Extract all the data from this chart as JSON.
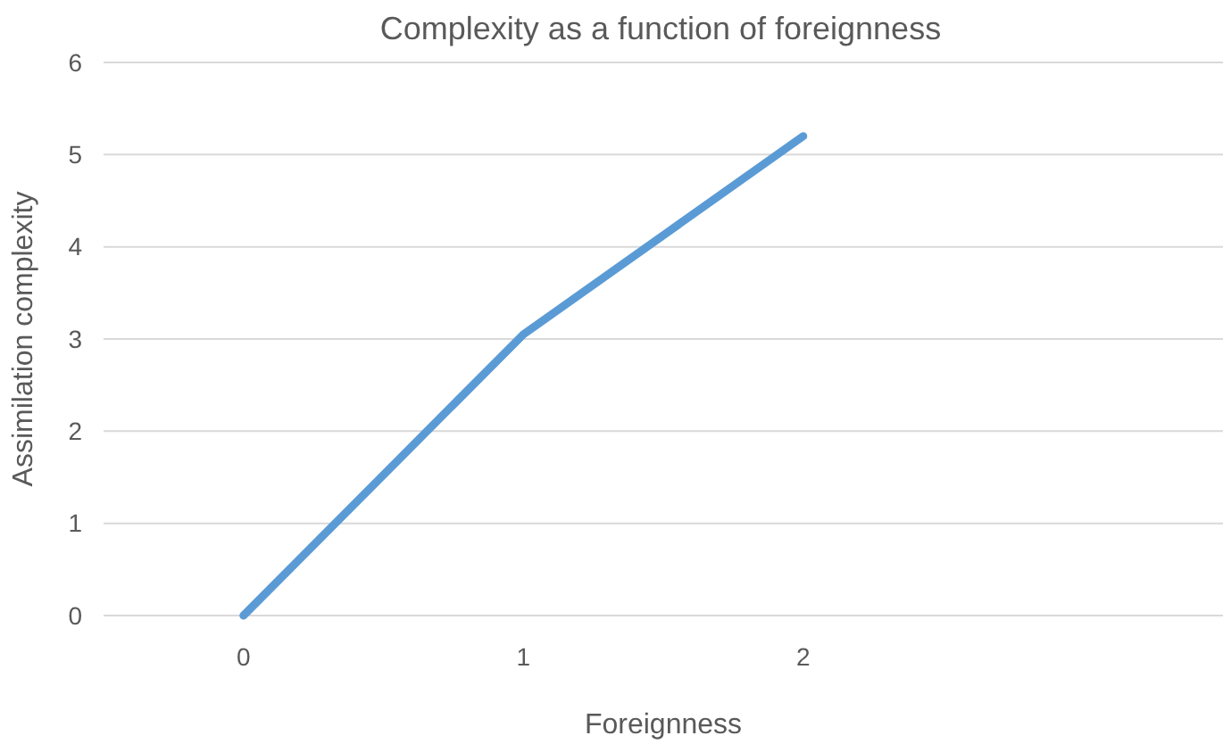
{
  "chart_data": {
    "type": "line",
    "title": "Complexity as a function of foreignness",
    "xlabel": "Foreignness",
    "ylabel": "Assimilation complexity",
    "categories": [
      "0",
      "1",
      "2",
      null
    ],
    "series": [
      {
        "color": "#5b9bd5",
        "values": [
          0,
          3.05,
          5.2,
          null
        ]
      }
    ],
    "ylim": [
      0,
      6
    ],
    "yticks": [
      0,
      1,
      2,
      3,
      4,
      5,
      6
    ],
    "grid": "y"
  }
}
